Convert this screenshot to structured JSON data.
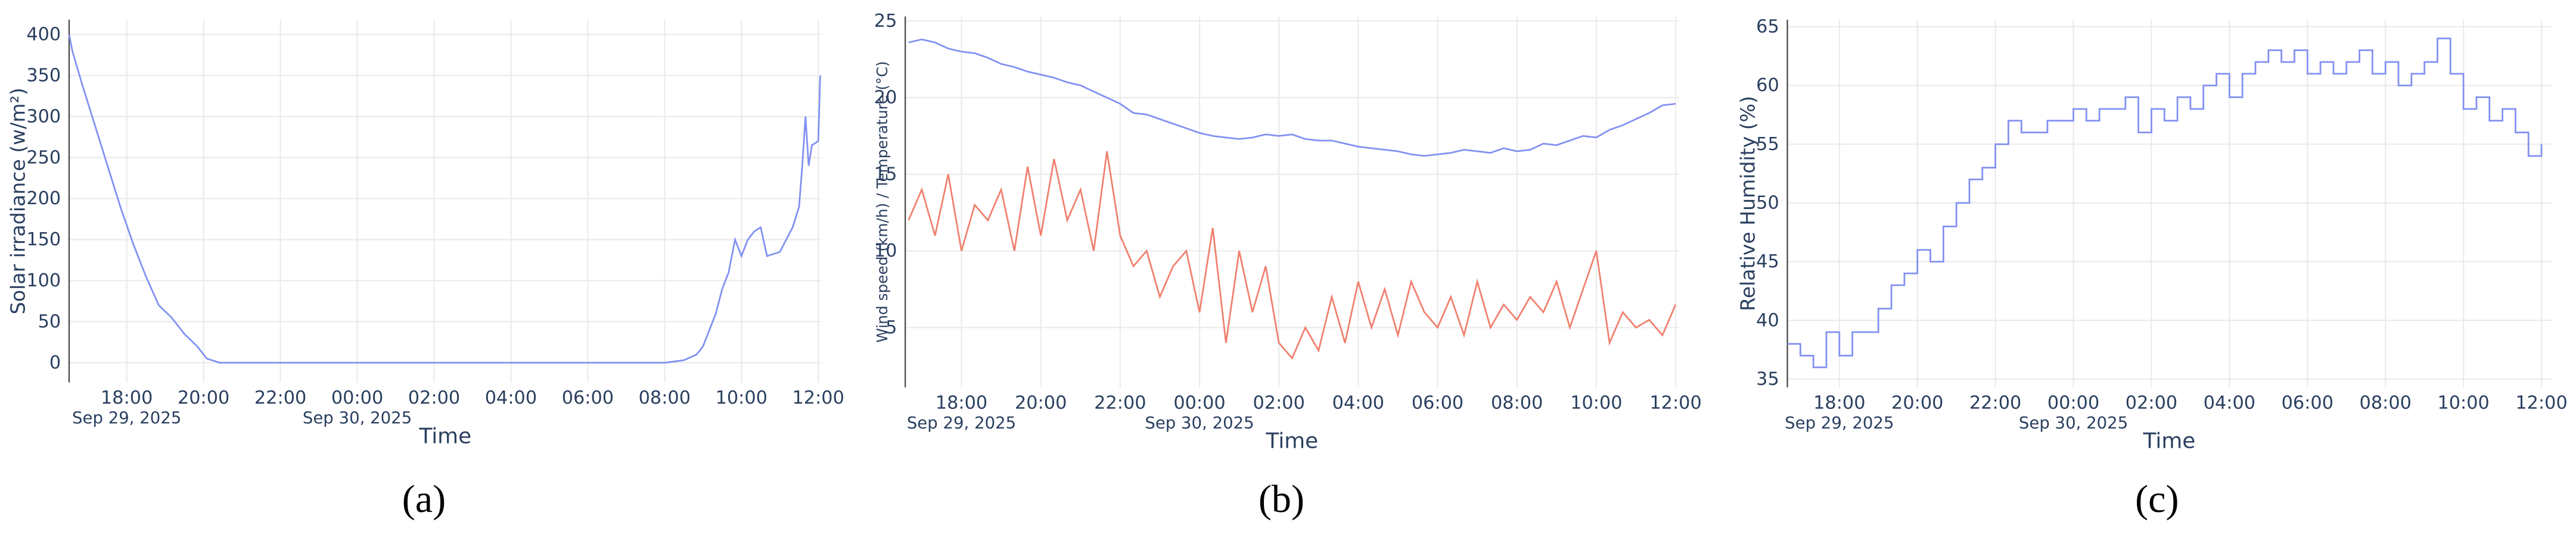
{
  "chart_data": [
    {
      "type": "line",
      "caption": "(a)",
      "xlabel": "Time",
      "ylabel": "Solar irradiance (w/m²)",
      "x": [
        "2025-09-29T16:30",
        "2025-09-29T16:35",
        "2025-09-29T16:50",
        "2025-09-29T17:10",
        "2025-09-29T17:30",
        "2025-09-29T17:50",
        "2025-09-29T18:10",
        "2025-09-29T18:30",
        "2025-09-29T18:50",
        "2025-09-29T19:10",
        "2025-09-29T19:30",
        "2025-09-29T19:50",
        "2025-09-29T20:05",
        "2025-09-29T20:25",
        "2025-09-30T08:00",
        "2025-09-30T08:30",
        "2025-09-30T08:50",
        "2025-09-30T09:00",
        "2025-09-30T09:10",
        "2025-09-30T09:20",
        "2025-09-30T09:30",
        "2025-09-30T09:40",
        "2025-09-30T09:50",
        "2025-09-30T10:00",
        "2025-09-30T10:10",
        "2025-09-30T10:20",
        "2025-09-30T10:30",
        "2025-09-30T10:40",
        "2025-09-30T11:00",
        "2025-09-30T11:10",
        "2025-09-30T11:20",
        "2025-09-30T11:30",
        "2025-09-30T11:35",
        "2025-09-30T11:40",
        "2025-09-30T11:45",
        "2025-09-30T11:50",
        "2025-09-30T12:00",
        "2025-09-30T12:03"
      ],
      "series": [
        {
          "color": "#8190f2",
          "values": [
            400,
            380,
            340,
            290,
            240,
            190,
            145,
            105,
            70,
            55,
            35,
            20,
            5,
            0,
            0,
            3,
            10,
            20,
            40,
            60,
            90,
            110,
            150,
            130,
            150,
            160,
            165,
            130,
            135,
            150,
            165,
            190,
            240,
            300,
            240,
            265,
            270,
            350
          ]
        }
      ],
      "xlim": [
        "2025-09-29T16:30",
        "2025-09-30T12:05"
      ],
      "ylim": [
        -24,
        418
      ],
      "xticks": [
        {
          "value": "2025-09-29T18:00",
          "label": "18:00"
        },
        {
          "value": "2025-09-29T20:00",
          "label": "20:00"
        },
        {
          "value": "2025-09-29T22:00",
          "label": "22:00"
        },
        {
          "value": "2025-09-30T00:00",
          "label": "00:00"
        },
        {
          "value": "2025-09-30T02:00",
          "label": "02:00"
        },
        {
          "value": "2025-09-30T04:00",
          "label": "04:00"
        },
        {
          "value": "2025-09-30T06:00",
          "label": "06:00"
        },
        {
          "value": "2025-09-30T08:00",
          "label": "08:00"
        },
        {
          "value": "2025-09-30T10:00",
          "label": "10:00"
        },
        {
          "value": "2025-09-30T12:00",
          "label": "12:00"
        }
      ],
      "xdate_labels": [
        {
          "value": "2025-09-29T18:00",
          "label": "Sep 29, 2025"
        },
        {
          "value": "2025-09-30T00:00",
          "label": "Sep 30, 2025"
        }
      ],
      "yticks": [
        0,
        50,
        100,
        150,
        200,
        250,
        300,
        350,
        400
      ],
      "grid": true,
      "line_shape": "linear"
    },
    {
      "type": "line",
      "caption": "(b)",
      "xlabel": "Time",
      "ylabel": "Wind speed (km/h) / Temperature (°C)",
      "x": [
        "2025-09-29T16:40",
        "2025-09-29T17:00",
        "2025-09-29T17:20",
        "2025-09-29T17:40",
        "2025-09-29T18:00",
        "2025-09-29T18:20",
        "2025-09-29T18:40",
        "2025-09-29T19:00",
        "2025-09-29T19:20",
        "2025-09-29T19:40",
        "2025-09-29T20:00",
        "2025-09-29T20:20",
        "2025-09-29T20:40",
        "2025-09-29T21:00",
        "2025-09-29T21:20",
        "2025-09-29T21:40",
        "2025-09-29T22:00",
        "2025-09-29T22:20",
        "2025-09-29T22:40",
        "2025-09-29T23:00",
        "2025-09-29T23:20",
        "2025-09-29T23:40",
        "2025-09-30T00:00",
        "2025-09-30T00:20",
        "2025-09-30T00:40",
        "2025-09-30T01:00",
        "2025-09-30T01:20",
        "2025-09-30T01:40",
        "2025-09-30T02:00",
        "2025-09-30T02:20",
        "2025-09-30T02:40",
        "2025-09-30T03:00",
        "2025-09-30T03:20",
        "2025-09-30T03:40",
        "2025-09-30T04:00",
        "2025-09-30T04:20",
        "2025-09-30T04:40",
        "2025-09-30T05:00",
        "2025-09-30T05:20",
        "2025-09-30T05:40",
        "2025-09-30T06:00",
        "2025-09-30T06:20",
        "2025-09-30T06:40",
        "2025-09-30T07:00",
        "2025-09-30T07:20",
        "2025-09-30T07:40",
        "2025-09-30T08:00",
        "2025-09-30T08:20",
        "2025-09-30T08:40",
        "2025-09-30T09:00",
        "2025-09-30T09:20",
        "2025-09-30T09:40",
        "2025-09-30T10:00",
        "2025-09-30T10:20",
        "2025-09-30T10:40",
        "2025-09-30T11:00",
        "2025-09-30T11:20",
        "2025-09-30T11:40",
        "2025-09-30T12:00"
      ],
      "series": [
        {
          "color": "#8190f2",
          "values": [
            23.6,
            23.8,
            23.6,
            23.2,
            23.0,
            22.9,
            22.6,
            22.2,
            22.0,
            21.7,
            21.5,
            21.3,
            21.0,
            20.8,
            20.4,
            20.0,
            19.6,
            19.0,
            18.9,
            18.6,
            18.3,
            18.0,
            17.7,
            17.5,
            17.4,
            17.3,
            17.4,
            17.6,
            17.5,
            17.6,
            17.3,
            17.2,
            17.2,
            17.0,
            16.8,
            16.7,
            16.6,
            16.5,
            16.3,
            16.2,
            16.3,
            16.4,
            16.6,
            16.5,
            16.4,
            16.7,
            16.5,
            16.6,
            17.0,
            16.9,
            17.2,
            17.5,
            17.4,
            17.9,
            18.2,
            18.6,
            19.0,
            19.5,
            19.6
          ]
        },
        {
          "color": "#f0806e",
          "values": [
            12,
            14,
            11,
            15,
            10,
            13,
            12,
            14,
            10,
            15.5,
            11,
            16,
            12,
            14,
            10,
            16.5,
            11,
            9,
            10,
            7,
            9,
            10,
            6,
            11.5,
            4,
            10,
            6,
            9,
            4,
            3,
            5,
            3.5,
            7,
            4,
            8,
            5,
            7.5,
            4.5,
            8,
            6,
            5,
            7,
            4.5,
            8,
            5,
            6.5,
            5.5,
            7,
            6,
            8,
            5,
            7.5,
            10,
            4,
            6,
            5,
            5.5,
            4.5,
            6.5
          ]
        }
      ],
      "xlim": [
        "2025-09-29T16:35",
        "2025-09-30T12:05"
      ],
      "ylim": [
        1.1,
        25.3
      ],
      "xticks": [
        {
          "value": "2025-09-29T18:00",
          "label": "18:00"
        },
        {
          "value": "2025-09-29T20:00",
          "label": "20:00"
        },
        {
          "value": "2025-09-29T22:00",
          "label": "22:00"
        },
        {
          "value": "2025-09-30T00:00",
          "label": "00:00"
        },
        {
          "value": "2025-09-30T02:00",
          "label": "02:00"
        },
        {
          "value": "2025-09-30T04:00",
          "label": "04:00"
        },
        {
          "value": "2025-09-30T06:00",
          "label": "06:00"
        },
        {
          "value": "2025-09-30T08:00",
          "label": "08:00"
        },
        {
          "value": "2025-09-30T10:00",
          "label": "10:00"
        },
        {
          "value": "2025-09-30T12:00",
          "label": "12:00"
        }
      ],
      "xdate_labels": [
        {
          "value": "2025-09-29T18:00",
          "label": "Sep 29, 2025"
        },
        {
          "value": "2025-09-30T00:00",
          "label": "Sep 30, 2025"
        }
      ],
      "yticks": [
        5,
        10,
        15,
        20,
        25
      ],
      "grid": true,
      "line_shape": "linear"
    },
    {
      "type": "line",
      "caption": "(c)",
      "xlabel": "Time",
      "ylabel": "Relative Humidity (%)",
      "x": [
        "2025-09-29T16:40",
        "2025-09-29T17:00",
        "2025-09-29T17:20",
        "2025-09-29T17:40",
        "2025-09-29T18:00",
        "2025-09-29T18:20",
        "2025-09-29T18:40",
        "2025-09-29T19:00",
        "2025-09-29T19:20",
        "2025-09-29T19:40",
        "2025-09-29T20:00",
        "2025-09-29T20:20",
        "2025-09-29T20:40",
        "2025-09-29T21:00",
        "2025-09-29T21:20",
        "2025-09-29T21:40",
        "2025-09-29T22:00",
        "2025-09-29T22:20",
        "2025-09-29T22:40",
        "2025-09-29T23:00",
        "2025-09-29T23:20",
        "2025-09-29T23:40",
        "2025-09-30T00:00",
        "2025-09-30T00:20",
        "2025-09-30T00:40",
        "2025-09-30T01:00",
        "2025-09-30T01:20",
        "2025-09-30T01:40",
        "2025-09-30T02:00",
        "2025-09-30T02:20",
        "2025-09-30T02:40",
        "2025-09-30T03:00",
        "2025-09-30T03:20",
        "2025-09-30T03:40",
        "2025-09-30T04:00",
        "2025-09-30T04:20",
        "2025-09-30T04:40",
        "2025-09-30T05:00",
        "2025-09-30T05:20",
        "2025-09-30T05:40",
        "2025-09-30T06:00",
        "2025-09-30T06:20",
        "2025-09-30T06:40",
        "2025-09-30T07:00",
        "2025-09-30T07:20",
        "2025-09-30T07:40",
        "2025-09-30T08:00",
        "2025-09-30T08:20",
        "2025-09-30T08:40",
        "2025-09-30T09:00",
        "2025-09-30T09:20",
        "2025-09-30T09:40",
        "2025-09-30T10:00",
        "2025-09-30T10:20",
        "2025-09-30T10:40",
        "2025-09-30T11:00",
        "2025-09-30T11:20",
        "2025-09-30T11:40",
        "2025-09-30T12:00"
      ],
      "series": [
        {
          "color": "#8190f2",
          "values": [
            38,
            37,
            36,
            39,
            37,
            39,
            39,
            41,
            43,
            44,
            46,
            45,
            48,
            50,
            52,
            53,
            55,
            57,
            56,
            56,
            57,
            57,
            58,
            57,
            58,
            58,
            59,
            56,
            58,
            57,
            59,
            58,
            60,
            61,
            59,
            61,
            62,
            63,
            62,
            63,
            61,
            62,
            61,
            62,
            63,
            61,
            62,
            60,
            61,
            62,
            64,
            61,
            58,
            59,
            57,
            58,
            56,
            54,
            55
          ]
        }
      ],
      "xlim": [
        "2025-09-29T16:40",
        "2025-09-30T12:15"
      ],
      "ylim": [
        34.3,
        65.6
      ],
      "xticks": [
        {
          "value": "2025-09-29T18:00",
          "label": "18:00"
        },
        {
          "value": "2025-09-29T20:00",
          "label": "20:00"
        },
        {
          "value": "2025-09-29T22:00",
          "label": "22:00"
        },
        {
          "value": "2025-09-30T00:00",
          "label": "00:00"
        },
        {
          "value": "2025-09-30T02:00",
          "label": "02:00"
        },
        {
          "value": "2025-09-30T04:00",
          "label": "04:00"
        },
        {
          "value": "2025-09-30T06:00",
          "label": "06:00"
        },
        {
          "value": "2025-09-30T08:00",
          "label": "08:00"
        },
        {
          "value": "2025-09-30T10:00",
          "label": "10:00"
        },
        {
          "value": "2025-09-30T12:00",
          "label": "12:00"
        }
      ],
      "xdate_labels": [
        {
          "value": "2025-09-29T18:00",
          "label": "Sep 29, 2025"
        },
        {
          "value": "2025-09-30T00:00",
          "label": "Sep 30, 2025"
        }
      ],
      "yticks": [
        35,
        40,
        45,
        50,
        55,
        60,
        65
      ],
      "grid": true,
      "line_shape": "hv"
    }
  ]
}
